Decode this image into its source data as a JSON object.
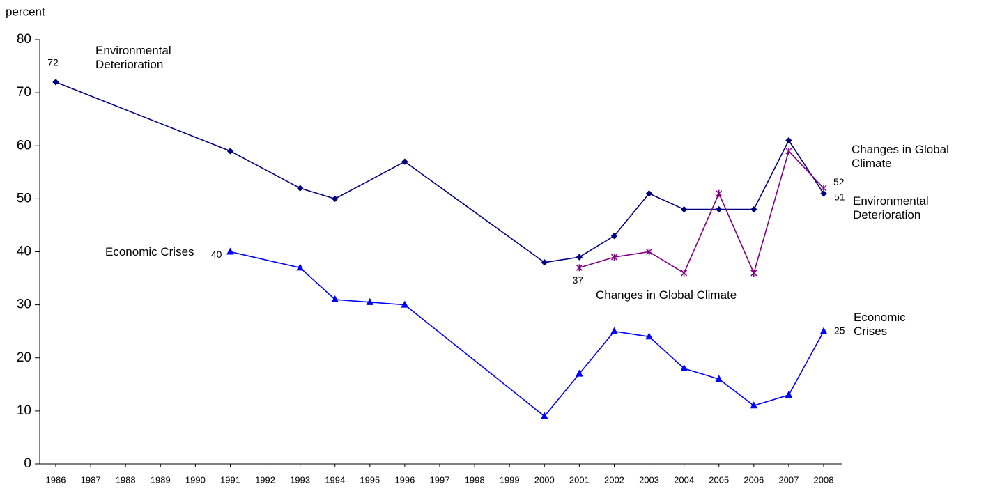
{
  "chart_data": {
    "type": "line",
    "y_label": "percent",
    "xlim": [
      1986,
      2008
    ],
    "xticks": [
      1986,
      1987,
      1988,
      1989,
      1990,
      1991,
      1992,
      1993,
      1994,
      1995,
      1996,
      1997,
      1998,
      1999,
      2000,
      2001,
      2002,
      2003,
      2004,
      2005,
      2006,
      2007,
      2008
    ],
    "ylim": [
      0,
      80
    ],
    "yticks": [
      0,
      10,
      20,
      30,
      40,
      50,
      60,
      70,
      80
    ],
    "series": [
      {
        "name": "Environmental Deterioration",
        "color": "#000080",
        "marker": "diamond",
        "x": [
          1986,
          1991,
          1993,
          1994,
          1996,
          2000,
          2001,
          2002,
          2003,
          2004,
          2005,
          2006,
          2007,
          2008
        ],
        "values": [
          72,
          59,
          52,
          50,
          57,
          38,
          39,
          43,
          51,
          48,
          48,
          48,
          61,
          51
        ]
      },
      {
        "name": "Changes in Global Climate",
        "color": "#800080",
        "marker": "asterisk",
        "x": [
          2001,
          2002,
          2003,
          2004,
          2005,
          2006,
          2007,
          2008
        ],
        "values": [
          37,
          39,
          40,
          36,
          51,
          36,
          59,
          52
        ]
      },
      {
        "name": "Economic Crises",
        "color": "#0000ff",
        "marker": "triangle",
        "x": [
          1991,
          1993,
          1994,
          1995,
          1996,
          2000,
          2001,
          2002,
          2003,
          2004,
          2005,
          2006,
          2007,
          2008
        ],
        "values": [
          40,
          37,
          31,
          30.5,
          30,
          9,
          17,
          25,
          24,
          18,
          16,
          11,
          13,
          25
        ]
      }
    ],
    "annotations": [
      "Environmental Deterioration",
      "Economic Crises",
      "Changes in Global Climate",
      "Changes in Global Climate",
      "Environmental Deterioration",
      "Economic Crises"
    ]
  }
}
